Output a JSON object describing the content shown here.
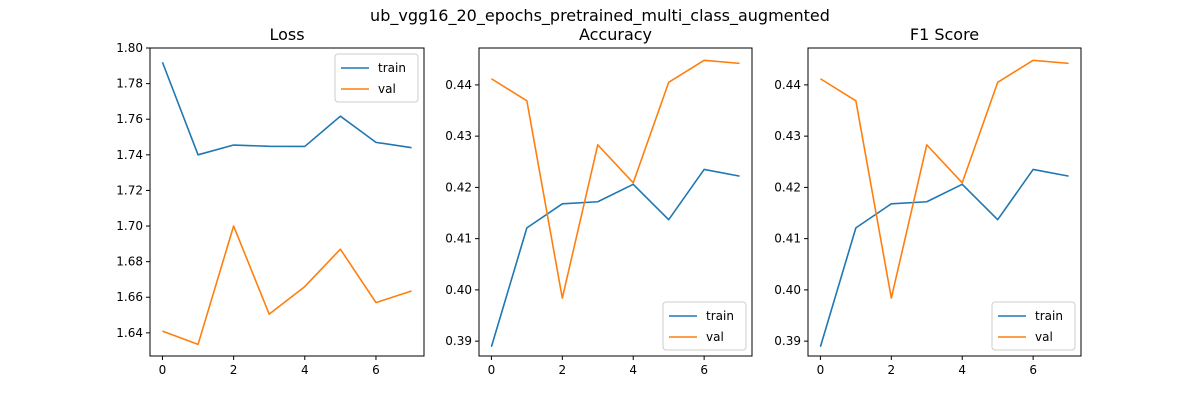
{
  "figure": {
    "title": "ub_vgg16_20_epochs_pretrained_multi_class_augmented"
  },
  "colors": {
    "train": "#1f77b4",
    "val": "#ff7f0e"
  },
  "chart_data": [
    {
      "type": "line",
      "title": "Loss",
      "xlabel": "",
      "ylabel": "",
      "x": [
        0,
        1,
        2,
        3,
        4,
        5,
        6,
        7
      ],
      "xlim": [
        -0.35,
        7.35
      ],
      "ylim": [
        1.627,
        1.8
      ],
      "xticks": [
        0,
        2,
        4,
        6
      ],
      "yticks": [
        1.64,
        1.66,
        1.68,
        1.7,
        1.72,
        1.74,
        1.76,
        1.78,
        1.8
      ],
      "ytick_decimals": 2,
      "legend_position": "upper-right",
      "series": [
        {
          "name": "train",
          "values": [
            1.792,
            1.74,
            1.7455,
            1.7448,
            1.7447,
            1.7617,
            1.747,
            1.744
          ]
        },
        {
          "name": "val",
          "values": [
            1.641,
            1.6335,
            1.7,
            1.6505,
            1.666,
            1.687,
            1.657,
            1.6635
          ]
        }
      ]
    },
    {
      "type": "line",
      "title": "Accuracy",
      "xlabel": "",
      "ylabel": "",
      "x": [
        0,
        1,
        2,
        3,
        4,
        5,
        6,
        7
      ],
      "xlim": [
        -0.35,
        7.35
      ],
      "ylim": [
        0.3871,
        0.4472
      ],
      "xticks": [
        0,
        2,
        4,
        6
      ],
      "yticks": [
        0.39,
        0.4,
        0.41,
        0.42,
        0.43,
        0.44
      ],
      "ytick_decimals": 2,
      "legend_position": "lower-right",
      "series": [
        {
          "name": "train",
          "values": [
            0.3889,
            0.4121,
            0.4168,
            0.4172,
            0.4206,
            0.4137,
            0.4235,
            0.4222
          ]
        },
        {
          "name": "val",
          "values": [
            0.4412,
            0.4369,
            0.3984,
            0.4283,
            0.4209,
            0.4405,
            0.4448,
            0.4442
          ]
        }
      ]
    },
    {
      "type": "line",
      "title": "F1 Score",
      "xlabel": "",
      "ylabel": "",
      "x": [
        0,
        1,
        2,
        3,
        4,
        5,
        6,
        7
      ],
      "xlim": [
        -0.35,
        7.35
      ],
      "ylim": [
        0.3871,
        0.4472
      ],
      "xticks": [
        0,
        2,
        4,
        6
      ],
      "yticks": [
        0.39,
        0.4,
        0.41,
        0.42,
        0.43,
        0.44
      ],
      "ytick_decimals": 2,
      "legend_position": "lower-right",
      "series": [
        {
          "name": "train",
          "values": [
            0.3889,
            0.4121,
            0.4168,
            0.4172,
            0.4206,
            0.4137,
            0.4235,
            0.4222
          ]
        },
        {
          "name": "val",
          "values": [
            0.4412,
            0.4369,
            0.3984,
            0.4283,
            0.4209,
            0.4405,
            0.4448,
            0.4442
          ]
        }
      ]
    }
  ]
}
